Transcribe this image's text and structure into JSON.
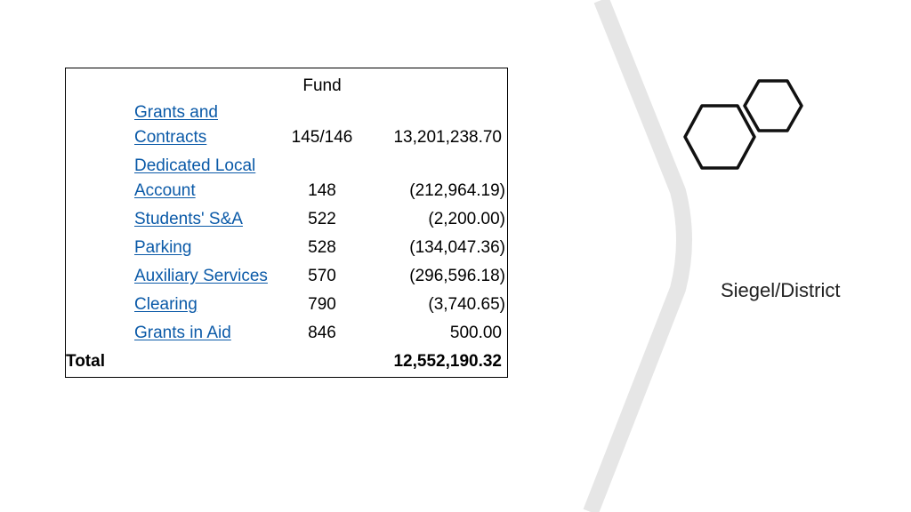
{
  "table": {
    "header": "Fund",
    "rows": [
      {
        "name_lines": [
          "Grants and",
          "Contracts"
        ],
        "fund": "145/146",
        "amount": "13,201,238.70"
      },
      {
        "name_lines": [
          "Dedicated Local",
          "Account"
        ],
        "fund": "148",
        "amount": "(212,964.19)"
      },
      {
        "name_lines": [
          "Students' S&A"
        ],
        "fund": "522",
        "amount": "(2,200.00)"
      },
      {
        "name_lines": [
          "Parking"
        ],
        "fund": "528",
        "amount": "(134,047.36)"
      },
      {
        "name_lines": [
          "Auxiliary Services"
        ],
        "fund": "570",
        "amount": "(296,596.18)"
      },
      {
        "name_lines": [
          "Clearing"
        ],
        "fund": "790",
        "amount": "(3,740.65)"
      },
      {
        "name_lines": [
          "Grants in Aid"
        ],
        "fund": "846",
        "amount": "500.00"
      }
    ],
    "total": {
      "label": "Total",
      "amount": "12,552,190.32"
    }
  },
  "side_label": "Siegel/District",
  "decoration": {
    "background_stripe": "#e6e6e6",
    "hexagon_stroke": "#111111",
    "link_color": "#0b5aa8"
  }
}
